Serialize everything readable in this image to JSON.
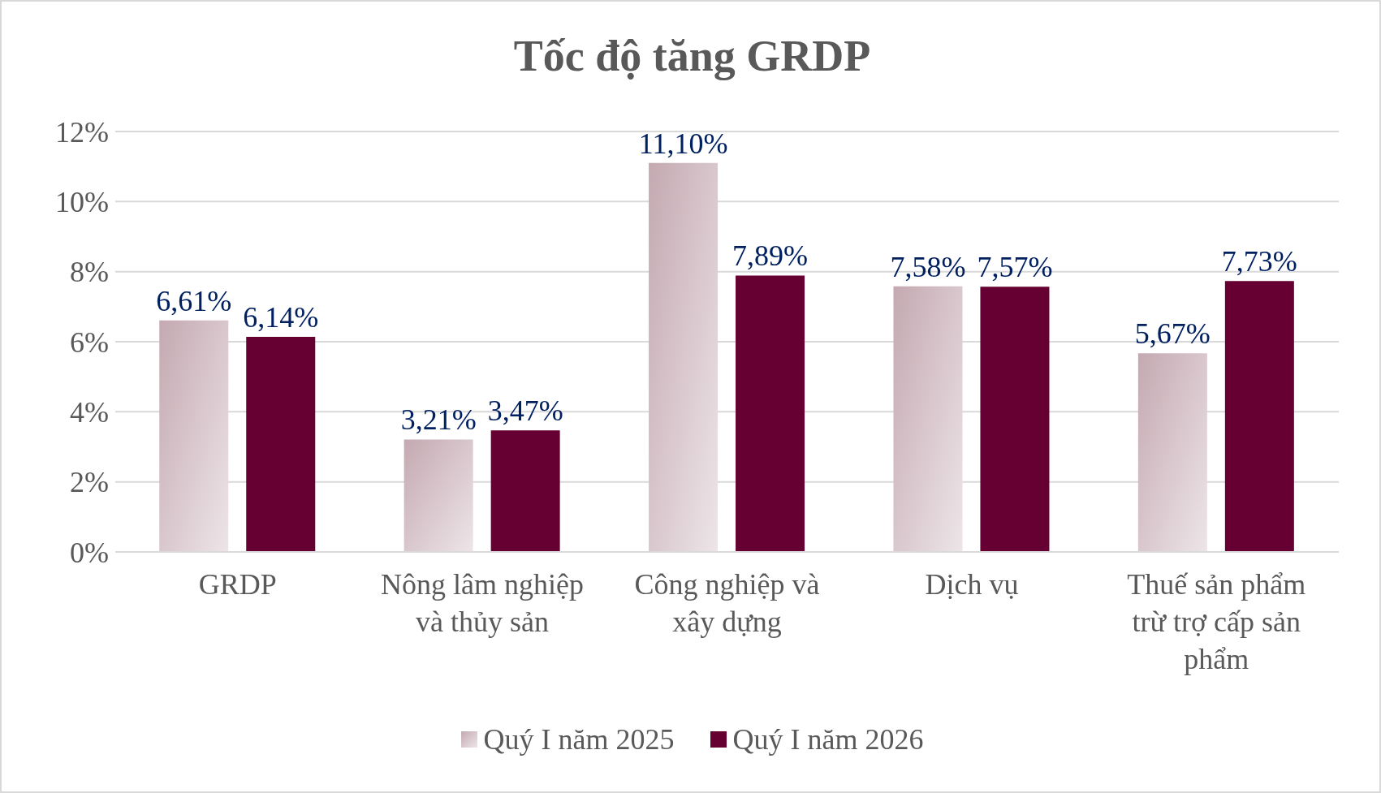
{
  "chart_data": {
    "type": "bar",
    "title": "Tốc độ tăng GRDP",
    "categories": [
      "GRDP",
      "Nông lâm nghiệp và thủy sản",
      "Công nghiệp và xây dựng",
      "Dịch vụ",
      "Thuế sản phẩm trừ trợ cấp sản phẩm"
    ],
    "series": [
      {
        "name": "Quý I năm 2025",
        "color": "#c4a9b1",
        "values": [
          6.61,
          3.21,
          11.1,
          7.58,
          5.67
        ],
        "value_labels": [
          "6,61%",
          "3,21%",
          "11,10%",
          "7,58%",
          "5,67%"
        ]
      },
      {
        "name": "Quý I năm 2026",
        "color": "#660033",
        "values": [
          6.14,
          3.47,
          7.89,
          7.57,
          7.73
        ],
        "value_labels": [
          "6,14%",
          "3,47%",
          "7,89%",
          "7,57%",
          "7,73%"
        ]
      }
    ],
    "ylim": [
      0,
      12
    ],
    "yticks": [
      {
        "value": 0,
        "label": "0%"
      },
      {
        "value": 2,
        "label": "2%"
      },
      {
        "value": 4,
        "label": "4%"
      },
      {
        "value": 6,
        "label": "6%"
      },
      {
        "value": 8,
        "label": "8%"
      },
      {
        "value": 10,
        "label": "10%"
      },
      {
        "value": 12,
        "label": "12%"
      }
    ],
    "grid": "y",
    "legend": "bottom"
  }
}
